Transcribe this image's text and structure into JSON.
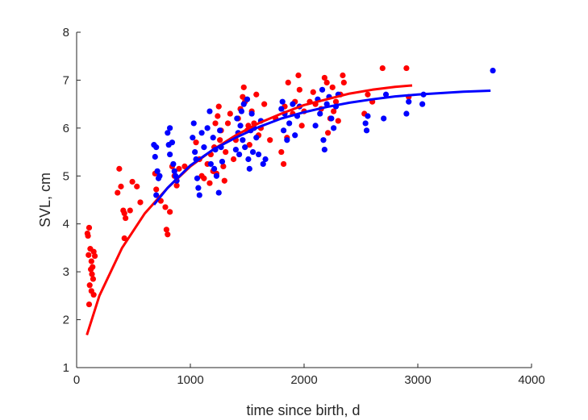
{
  "chart_data": {
    "type": "scatter",
    "xlabel": "time since birth, d",
    "ylabel": "SVL, cm",
    "xlim": [
      0,
      4000
    ],
    "ylim": [
      1,
      8
    ],
    "xticks": [
      0,
      1000,
      2000,
      3000,
      4000
    ],
    "yticks": [
      1,
      2,
      3,
      4,
      5,
      6,
      7,
      8
    ],
    "xtick_labels": [
      "0",
      "1000",
      "2000",
      "3000",
      "4000"
    ],
    "ytick_labels": [
      "1",
      "2",
      "3",
      "4",
      "5",
      "6",
      "7",
      "8"
    ],
    "grid": false,
    "legend": "none",
    "series": [
      {
        "color": "#ff0000",
        "points": [
          [
            95,
            3.8
          ],
          [
            100,
            3.75
          ],
          [
            110,
            3.92
          ],
          [
            105,
            3.35
          ],
          [
            120,
            3.48
          ],
          [
            130,
            3.22
          ],
          [
            140,
            3.1
          ],
          [
            150,
            3.42
          ],
          [
            160,
            3.33
          ],
          [
            125,
            3.05
          ],
          [
            135,
            2.95
          ],
          [
            145,
            2.85
          ],
          [
            115,
            2.72
          ],
          [
            130,
            2.6
          ],
          [
            150,
            2.52
          ],
          [
            110,
            2.32
          ],
          [
            360,
            4.65
          ],
          [
            375,
            5.15
          ],
          [
            390,
            4.78
          ],
          [
            410,
            4.28
          ],
          [
            420,
            4.22
          ],
          [
            430,
            4.12
          ],
          [
            420,
            3.7
          ],
          [
            470,
            4.28
          ],
          [
            490,
            4.88
          ],
          [
            530,
            4.78
          ],
          [
            560,
            4.45
          ],
          [
            690,
            5.05
          ],
          [
            700,
            4.72
          ],
          [
            740,
            4.48
          ],
          [
            780,
            4.35
          ],
          [
            790,
            3.88
          ],
          [
            800,
            3.78
          ],
          [
            820,
            4.25
          ],
          [
            840,
            5.2
          ],
          [
            860,
            5.0
          ],
          [
            880,
            4.8
          ],
          [
            900,
            5.15
          ],
          [
            950,
            5.2
          ],
          [
            1050,
            5.7
          ],
          [
            1080,
            5.35
          ],
          [
            1100,
            5.0
          ],
          [
            1120,
            4.95
          ],
          [
            1150,
            5.25
          ],
          [
            1170,
            4.85
          ],
          [
            1180,
            5.45
          ],
          [
            1200,
            5.1
          ],
          [
            1210,
            5.6
          ],
          [
            1220,
            6.1
          ],
          [
            1230,
            5.05
          ],
          [
            1240,
            6.25
          ],
          [
            1250,
            6.45
          ],
          [
            1260,
            5.75
          ],
          [
            1270,
            5.95
          ],
          [
            1290,
            5.2
          ],
          [
            1300,
            4.9
          ],
          [
            1310,
            5.5
          ],
          [
            1330,
            6.1
          ],
          [
            1350,
            6.3
          ],
          [
            1380,
            5.35
          ],
          [
            1400,
            5.75
          ],
          [
            1420,
            6.2
          ],
          [
            1440,
            6.4
          ],
          [
            1460,
            6.65
          ],
          [
            1470,
            6.85
          ],
          [
            1480,
            6.55
          ],
          [
            1500,
            5.95
          ],
          [
            1510,
            6.05
          ],
          [
            1520,
            5.65
          ],
          [
            1540,
            6.35
          ],
          [
            1560,
            6.1
          ],
          [
            1580,
            6.7
          ],
          [
            1600,
            5.85
          ],
          [
            1620,
            6.0
          ],
          [
            1650,
            6.5
          ],
          [
            1700,
            5.75
          ],
          [
            1750,
            6.2
          ],
          [
            1800,
            5.5
          ],
          [
            1820,
            5.25
          ],
          [
            1830,
            6.45
          ],
          [
            1850,
            5.8
          ],
          [
            1860,
            6.95
          ],
          [
            1900,
            6.3
          ],
          [
            1920,
            6.55
          ],
          [
            1950,
            7.1
          ],
          [
            1960,
            6.8
          ],
          [
            1980,
            6.05
          ],
          [
            2000,
            6.35
          ],
          [
            2050,
            6.55
          ],
          [
            2080,
            6.75
          ],
          [
            2100,
            6.5
          ],
          [
            2150,
            6.4
          ],
          [
            2180,
            7.05
          ],
          [
            2200,
            6.95
          ],
          [
            2210,
            5.9
          ],
          [
            2230,
            6.2
          ],
          [
            2250,
            6.85
          ],
          [
            2260,
            6.35
          ],
          [
            2280,
            6.55
          ],
          [
            2300,
            6.15
          ],
          [
            2320,
            6.7
          ],
          [
            2340,
            7.1
          ],
          [
            2350,
            6.95
          ],
          [
            2530,
            6.3
          ],
          [
            2560,
            6.7
          ],
          [
            2600,
            6.55
          ],
          [
            2690,
            7.25
          ],
          [
            2900,
            7.25
          ],
          [
            2920,
            6.65
          ]
        ],
        "fit": [
          [
            90,
            1.68
          ],
          [
            200,
            2.5
          ],
          [
            400,
            3.5
          ],
          [
            600,
            4.22
          ],
          [
            800,
            4.75
          ],
          [
            1000,
            5.2
          ],
          [
            1200,
            5.55
          ],
          [
            1400,
            5.85
          ],
          [
            1600,
            6.1
          ],
          [
            1800,
            6.3
          ],
          [
            2000,
            6.48
          ],
          [
            2200,
            6.6
          ],
          [
            2400,
            6.72
          ],
          [
            2600,
            6.8
          ],
          [
            2800,
            6.86
          ],
          [
            2950,
            6.89
          ]
        ]
      },
      {
        "color": "#0000ff",
        "points": [
          [
            680,
            5.65
          ],
          [
            690,
            5.4
          ],
          [
            700,
            5.6
          ],
          [
            710,
            5.1
          ],
          [
            720,
            4.95
          ],
          [
            700,
            4.6
          ],
          [
            730,
            5.0
          ],
          [
            800,
            5.9
          ],
          [
            810,
            5.65
          ],
          [
            820,
            5.45
          ],
          [
            840,
            5.7
          ],
          [
            850,
            5.25
          ],
          [
            860,
            5.1
          ],
          [
            870,
            5.0
          ],
          [
            880,
            4.9
          ],
          [
            820,
            6.0
          ],
          [
            1020,
            5.8
          ],
          [
            1030,
            6.1
          ],
          [
            1040,
            5.5
          ],
          [
            1050,
            5.35
          ],
          [
            1060,
            4.95
          ],
          [
            1070,
            4.75
          ],
          [
            1080,
            4.6
          ],
          [
            1100,
            5.9
          ],
          [
            1120,
            5.6
          ],
          [
            1150,
            6.0
          ],
          [
            1170,
            6.35
          ],
          [
            1180,
            5.25
          ],
          [
            1200,
            5.8
          ],
          [
            1210,
            5.15
          ],
          [
            1220,
            5.55
          ],
          [
            1230,
            5.0
          ],
          [
            1250,
            4.65
          ],
          [
            1260,
            5.95
          ],
          [
            1270,
            5.6
          ],
          [
            1280,
            5.3
          ],
          [
            1400,
            5.55
          ],
          [
            1410,
            6.2
          ],
          [
            1420,
            5.9
          ],
          [
            1430,
            5.45
          ],
          [
            1440,
            6.05
          ],
          [
            1450,
            6.35
          ],
          [
            1460,
            5.75
          ],
          [
            1470,
            6.5
          ],
          [
            1480,
            5.6
          ],
          [
            1500,
            6.6
          ],
          [
            1510,
            5.35
          ],
          [
            1520,
            5.15
          ],
          [
            1530,
            5.95
          ],
          [
            1540,
            6.3
          ],
          [
            1550,
            5.5
          ],
          [
            1560,
            6.0
          ],
          [
            1580,
            5.8
          ],
          [
            1600,
            5.45
          ],
          [
            1620,
            6.15
          ],
          [
            1640,
            5.25
          ],
          [
            1660,
            5.35
          ],
          [
            1800,
            6.4
          ],
          [
            1810,
            6.55
          ],
          [
            1820,
            5.95
          ],
          [
            1830,
            6.3
          ],
          [
            1850,
            5.75
          ],
          [
            1870,
            6.1
          ],
          [
            1900,
            6.5
          ],
          [
            1920,
            5.85
          ],
          [
            1940,
            6.25
          ],
          [
            1960,
            6.45
          ],
          [
            2100,
            6.05
          ],
          [
            2120,
            6.6
          ],
          [
            2140,
            6.3
          ],
          [
            2160,
            6.8
          ],
          [
            2170,
            5.75
          ],
          [
            2180,
            5.55
          ],
          [
            2200,
            6.5
          ],
          [
            2220,
            6.65
          ],
          [
            2240,
            6.2
          ],
          [
            2260,
            6.0
          ],
          [
            2280,
            6.45
          ],
          [
            2300,
            6.7
          ],
          [
            2540,
            6.1
          ],
          [
            2550,
            5.95
          ],
          [
            2560,
            6.25
          ],
          [
            2700,
            6.2
          ],
          [
            2720,
            6.7
          ],
          [
            2900,
            6.3
          ],
          [
            2920,
            6.55
          ],
          [
            3040,
            6.5
          ],
          [
            3050,
            6.7
          ],
          [
            3660,
            7.2
          ]
        ],
        "fit": [
          [
            680,
            4.4
          ],
          [
            800,
            4.75
          ],
          [
            1000,
            5.22
          ],
          [
            1200,
            5.55
          ],
          [
            1400,
            5.8
          ],
          [
            1600,
            6.02
          ],
          [
            1800,
            6.2
          ],
          [
            2000,
            6.33
          ],
          [
            2200,
            6.44
          ],
          [
            2400,
            6.53
          ],
          [
            2600,
            6.6
          ],
          [
            2800,
            6.66
          ],
          [
            3000,
            6.7
          ],
          [
            3200,
            6.73
          ],
          [
            3400,
            6.76
          ],
          [
            3640,
            6.78
          ]
        ]
      }
    ]
  }
}
